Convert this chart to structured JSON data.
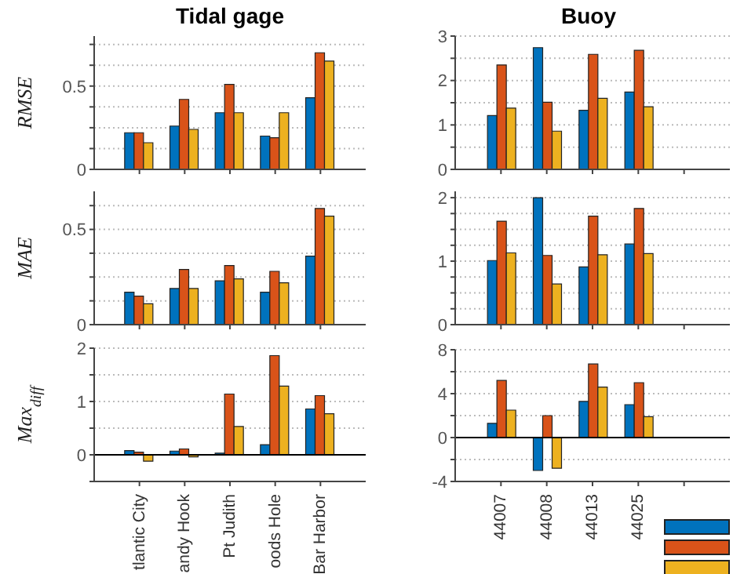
{
  "chart_data": [
    {
      "type": "bar",
      "title": "Tidal gage",
      "ylabel": "RMSE",
      "categories": [
        null,
        null,
        null,
        null,
        null
      ],
      "series": [
        {
          "color": "#0072bd",
          "values": [
            0.22,
            0.26,
            0.34,
            0.2,
            0.43
          ]
        },
        {
          "color": "#d95319",
          "values": [
            0.22,
            0.42,
            0.51,
            0.19,
            0.7
          ]
        },
        {
          "color": "#edb120",
          "values": [
            0.16,
            0.24,
            0.34,
            0.34,
            0.65
          ]
        }
      ],
      "ylim": [
        0,
        0.8
      ],
      "yticks": [
        0,
        {
          "value": 0.125,
          "label": null
        },
        {
          "value": 0.25,
          "label": null
        },
        {
          "value": 0.375,
          "label": null
        },
        0.5,
        {
          "value": 0.625,
          "label": null
        },
        {
          "value": 0.75,
          "label": null
        }
      ],
      "grid": "y",
      "tick_labels": "y"
    },
    {
      "type": "bar",
      "title": "Buoy",
      "categories": [
        null,
        null,
        null,
        null,
        null
      ],
      "series": [
        {
          "color": "#0072bd",
          "values": [
            1.21,
            2.74,
            1.33,
            1.74,
            null
          ]
        },
        {
          "color": "#d95319",
          "values": [
            2.35,
            1.51,
            2.59,
            2.68,
            null
          ]
        },
        {
          "color": "#edb120",
          "values": [
            1.38,
            0.86,
            1.6,
            1.41,
            null
          ]
        }
      ],
      "ylim": [
        0,
        3
      ],
      "yticks": [
        0,
        {
          "value": 0.5,
          "label": null
        },
        1,
        {
          "value": 1.5,
          "label": null
        },
        2,
        {
          "value": 2.5,
          "label": null
        },
        3
      ],
      "grid": "y",
      "tick_labels": "y"
    },
    {
      "type": "bar",
      "ylabel": "MAE",
      "categories": [
        null,
        null,
        null,
        null,
        null
      ],
      "series": [
        {
          "color": "#0072bd",
          "values": [
            0.17,
            0.19,
            0.23,
            0.17,
            0.36
          ]
        },
        {
          "color": "#d95319",
          "values": [
            0.15,
            0.29,
            0.31,
            0.28,
            0.61
          ]
        },
        {
          "color": "#edb120",
          "values": [
            0.11,
            0.19,
            0.24,
            0.22,
            0.57
          ]
        }
      ],
      "ylim": [
        0,
        0.7
      ],
      "yticks": [
        0,
        {
          "value": 0.125,
          "label": null
        },
        {
          "value": 0.25,
          "label": null
        },
        {
          "value": 0.375,
          "label": null
        },
        0.5,
        {
          "value": 0.625,
          "label": null
        }
      ],
      "grid": "y",
      "tick_labels": "y"
    },
    {
      "type": "bar",
      "categories": [
        null,
        null,
        null,
        null,
        null
      ],
      "series": [
        {
          "color": "#0072bd",
          "values": [
            1.01,
            2.0,
            0.91,
            1.27,
            null
          ]
        },
        {
          "color": "#d95319",
          "values": [
            1.63,
            1.09,
            1.71,
            1.83,
            null
          ]
        },
        {
          "color": "#edb120",
          "values": [
            1.13,
            0.64,
            1.1,
            1.12,
            null
          ]
        }
      ],
      "ylim": [
        0,
        2.1
      ],
      "yticks": [
        0,
        {
          "value": 0.25,
          "label": null
        },
        {
          "value": 0.5,
          "label": null
        },
        {
          "value": 0.75,
          "label": null
        },
        1,
        {
          "value": 1.25,
          "label": null
        },
        {
          "value": 1.5,
          "label": null
        },
        {
          "value": 1.75,
          "label": null
        },
        2
      ],
      "grid": "y",
      "tick_labels": "y"
    },
    {
      "type": "bar",
      "ylabel": "Max$_{diff}$",
      "categories": [
        "tlantic City",
        "andy Hook",
        "Pt Judith",
        "oods Hole",
        "Bar Harbor"
      ],
      "series": [
        {
          "color": "#0072bd",
          "values": [
            0.08,
            0.07,
            0.03,
            0.19,
            0.86
          ]
        },
        {
          "color": "#d95319",
          "values": [
            0.05,
            0.11,
            1.14,
            1.86,
            1.11
          ]
        },
        {
          "color": "#edb120",
          "values": [
            -0.12,
            -0.04,
            0.53,
            1.29,
            0.77
          ]
        }
      ],
      "ylim": [
        -0.5,
        2
      ],
      "yticks": [
        {
          "value": -0.5,
          "label": null
        },
        0,
        {
          "value": 0.5,
          "label": null
        },
        1,
        {
          "value": 1.5,
          "label": null
        },
        2
      ],
      "grid": "y"
    },
    {
      "type": "bar",
      "categories": [
        "44007",
        "44008",
        "44013",
        "44025",
        null
      ],
      "series": [
        {
          "color": "#0072bd",
          "values": [
            1.3,
            -3.0,
            3.3,
            3.0,
            null
          ]
        },
        {
          "color": "#d95319",
          "values": [
            5.2,
            2.0,
            6.7,
            5.0,
            null
          ]
        },
        {
          "color": "#edb120",
          "values": [
            2.5,
            -2.8,
            4.6,
            1.9,
            null
          ]
        }
      ],
      "ylim": [
        -4,
        8
      ],
      "yticks": [
        -4,
        {
          "value": -2,
          "label": null
        },
        0,
        {
          "value": 2,
          "label": null
        },
        4,
        {
          "value": 6,
          "label": null
        },
        8
      ],
      "grid": "y"
    }
  ]
}
